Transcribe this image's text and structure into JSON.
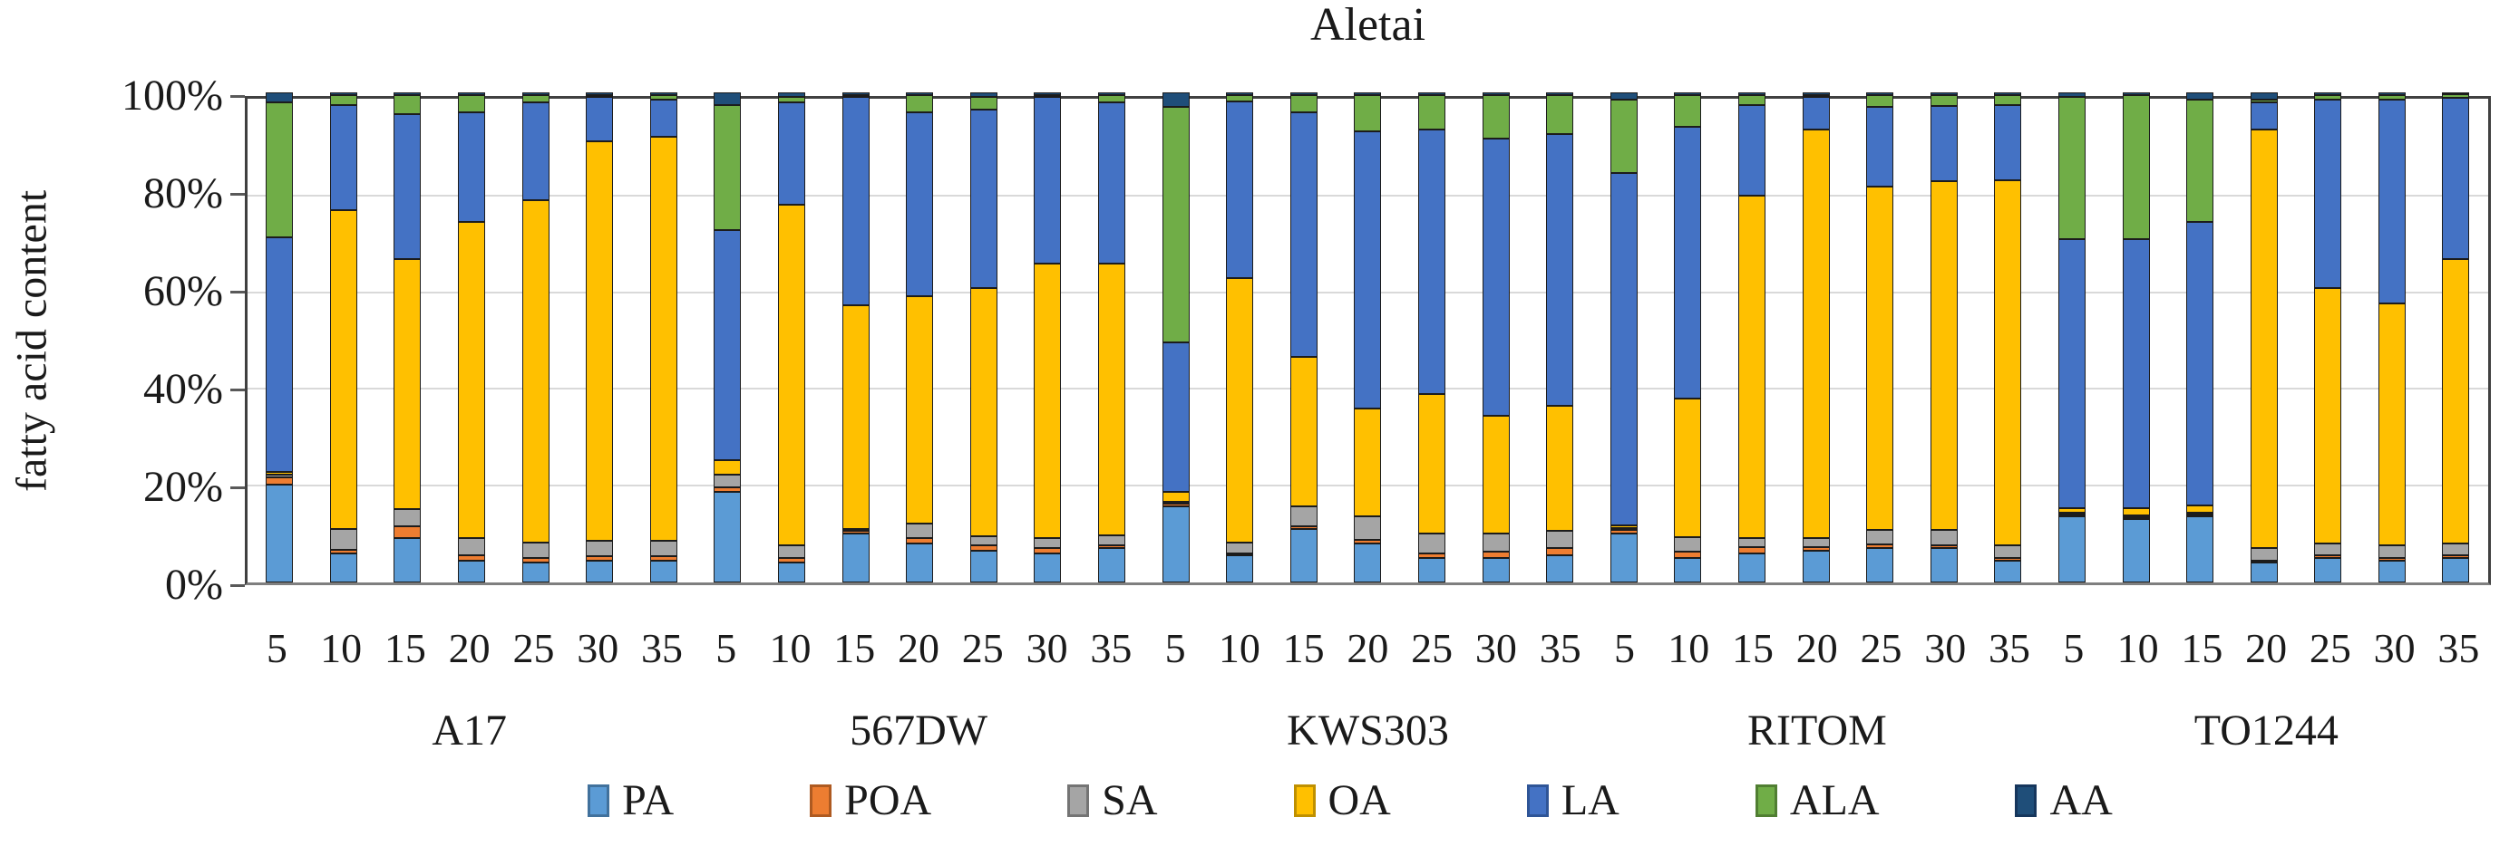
{
  "chart_data": {
    "type": "bar",
    "variant": "100-percent-stacked-column",
    "title": "Aletai",
    "ylabel": "fatty acid content",
    "xlabel": "",
    "ylim": [
      0,
      100
    ],
    "yticks": [
      {
        "value": 0,
        "label": "0%"
      },
      {
        "value": 20,
        "label": "20%"
      },
      {
        "value": 40,
        "label": "40%"
      },
      {
        "value": 60,
        "label": "60%"
      },
      {
        "value": 80,
        "label": "80%"
      },
      {
        "value": 100,
        "label": "100%"
      }
    ],
    "grid": "horizontal",
    "legend_position": "bottom",
    "series_order": [
      "PA",
      "POA",
      "SA",
      "OA",
      "LA",
      "ALA",
      "AA"
    ],
    "series_colors": {
      "PA": "#5B9BD5",
      "POA": "#ED7D31",
      "SA": "#A5A5A5",
      "OA": "#FFC000",
      "LA": "#4472C4",
      "ALA": "#70AD47",
      "AA": "#1F4E79"
    },
    "series_border_colors": {
      "PA": "#41719C",
      "POA": "#AE5A21",
      "SA": "#747474",
      "OA": "#BF9000",
      "LA": "#2F5597",
      "ALA": "#507E32",
      "AA": "#16365C"
    },
    "groups": [
      {
        "label": "A17",
        "x": [
          "5",
          "10",
          "15",
          "20",
          "25",
          "30",
          "35"
        ],
        "bars": [
          [
            20,
            1.5,
            0.5,
            0.5,
            48,
            27.5,
            2
          ],
          [
            6,
            0.7,
            4.3,
            65,
            21.5,
            2,
            0.5
          ],
          [
            9,
            2.5,
            3.5,
            51,
            29.5,
            4,
            0.5
          ],
          [
            4.5,
            1,
            3.5,
            64.5,
            22.5,
            3.5,
            0.5
          ],
          [
            4,
            1,
            3.2,
            69.8,
            20,
            1.5,
            0.5
          ],
          [
            4.5,
            0.8,
            3.2,
            81.5,
            9,
            0.5,
            0.5
          ],
          [
            4.5,
            0.8,
            3.2,
            82.5,
            7.5,
            1,
            0.5
          ]
        ]
      },
      {
        "label": "567DW",
        "x": [
          "5",
          "10",
          "15",
          "20",
          "25",
          "30",
          "35"
        ],
        "bars": [
          [
            18.5,
            1,
            2.5,
            3,
            47,
            25.5,
            2.5
          ],
          [
            4,
            1,
            2.5,
            69.5,
            21,
            1,
            1
          ],
          [
            10,
            0.5,
            0.5,
            45.5,
            42.5,
            0.5,
            0.5
          ],
          [
            8,
            1,
            3,
            46.5,
            37.5,
            3.5,
            0.5
          ],
          [
            6.5,
            1,
            2,
            50.5,
            36.5,
            2.5,
            1
          ],
          [
            6,
            1,
            2,
            56,
            34,
            0.5,
            0.5
          ],
          [
            7,
            0.5,
            2.2,
            55.3,
            33,
            1.5,
            0.5
          ]
        ]
      },
      {
        "label": "KWS303",
        "x": [
          "5",
          "10",
          "15",
          "20",
          "25",
          "30",
          "35"
        ],
        "bars": [
          [
            15.5,
            0.5,
            0.5,
            2,
            30.5,
            48,
            3
          ],
          [
            5.5,
            0.5,
            2.2,
            54,
            36,
            1.3,
            0.5
          ],
          [
            11,
            0.5,
            4,
            30.5,
            50,
            3.5,
            0.5
          ],
          [
            8,
            0.7,
            4.8,
            22,
            56.5,
            7.5,
            0.5
          ],
          [
            5,
            1,
            4,
            28.5,
            54,
            7,
            0.5
          ],
          [
            5,
            1.3,
            3.7,
            24,
            56.5,
            9,
            0.5
          ],
          [
            5.5,
            1.5,
            3.5,
            25.5,
            55.5,
            8,
            0.5
          ]
        ]
      },
      {
        "label": "RITOM",
        "x": [
          "5",
          "10",
          "15",
          "20",
          "25",
          "30",
          "35"
        ],
        "bars": [
          [
            10,
            0.7,
            0.3,
            0.5,
            72,
            15,
            1.5
          ],
          [
            5,
            1.3,
            3,
            28.2,
            55.5,
            6.5,
            0.5
          ],
          [
            6,
            1.3,
            1.7,
            70,
            18.5,
            2,
            0.5
          ],
          [
            6.5,
            0.7,
            1.8,
            83.5,
            6.5,
            0.5,
            0.5
          ],
          [
            7,
            0.7,
            3,
            70,
            16.3,
            2.5,
            0.5
          ],
          [
            7,
            0.5,
            3.3,
            71,
            15.5,
            2.2,
            0.5
          ],
          [
            4.5,
            0.5,
            2.5,
            74.5,
            15.5,
            2,
            0.5
          ]
        ]
      },
      {
        "label": "TO1244",
        "x": [
          "5",
          "10",
          "15",
          "20",
          "25",
          "30",
          "35"
        ],
        "bars": [
          [
            13.5,
            0.3,
            0.2,
            1,
            55,
            29,
            1
          ],
          [
            13,
            0.3,
            0.2,
            1.5,
            55,
            29.5,
            0.5
          ],
          [
            13.5,
            0.3,
            0.2,
            1.5,
            58,
            25,
            1.5
          ],
          [
            4,
            0.5,
            2.5,
            85.5,
            5.5,
            0.5,
            1.5
          ],
          [
            5,
            0.5,
            2.5,
            52,
            38.5,
            1,
            0.5
          ],
          [
            4.5,
            0.5,
            2.5,
            49.5,
            41.5,
            1,
            0.5
          ],
          [
            5,
            0.5,
            2.5,
            58,
            33,
            0.7,
            0.3
          ]
        ]
      }
    ],
    "legend": [
      {
        "label": "PA"
      },
      {
        "label": "POA"
      },
      {
        "label": "SA"
      },
      {
        "label": "OA"
      },
      {
        "label": "LA"
      },
      {
        "label": "ALA"
      },
      {
        "label": "AA"
      }
    ]
  }
}
